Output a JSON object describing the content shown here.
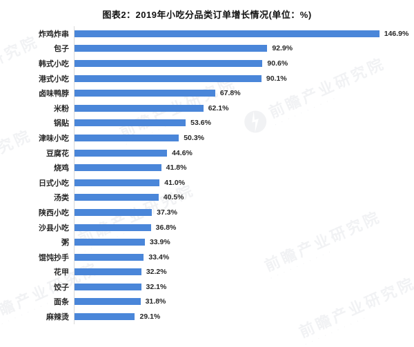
{
  "title": "图表2：2019年小吃分品类订单增长情况(单位：%)",
  "watermark": {
    "text": "前瞻产业研究院",
    "subtext_placeholder": "· · · · · · · · · ·"
  },
  "chart_data": {
    "type": "bar",
    "orientation": "horizontal",
    "title": "图表2：2019年小吃分品类订单增长情况(单位：%)",
    "unit": "%",
    "categories": [
      "炸鸡炸串",
      "包子",
      "韩式小吃",
      "港式小吃",
      "卤味鸭脖",
      "米粉",
      "锅贴",
      "津味小吃",
      "豆腐花",
      "烧鸡",
      "日式小吃",
      "汤类",
      "陕西小吃",
      "沙县小吃",
      "粥",
      "馄饨抄手",
      "花甲",
      "饺子",
      "面条",
      "麻辣烫"
    ],
    "values": [
      146.9,
      92.9,
      90.6,
      90.1,
      67.8,
      62.1,
      53.6,
      50.3,
      44.6,
      41.8,
      41.0,
      40.5,
      37.3,
      36.8,
      33.9,
      33.4,
      32.2,
      32.1,
      31.8,
      29.1
    ],
    "value_labels": [
      "146.9%",
      "92.9%",
      "90.6%",
      "90.1%",
      "67.8%",
      "62.1%",
      "53.6%",
      "50.3%",
      "44.6%",
      "41.8%",
      "41.0%",
      "40.5%",
      "37.3%",
      "36.8%",
      "33.9%",
      "33.4%",
      "32.2%",
      "32.1%",
      "31.8%",
      "29.1%"
    ],
    "xlim": [
      0,
      160
    ],
    "bar_color": "#4a86d9",
    "label_color": "#262626",
    "value_label_color": "#262626",
    "grid": false,
    "legend": false
  }
}
